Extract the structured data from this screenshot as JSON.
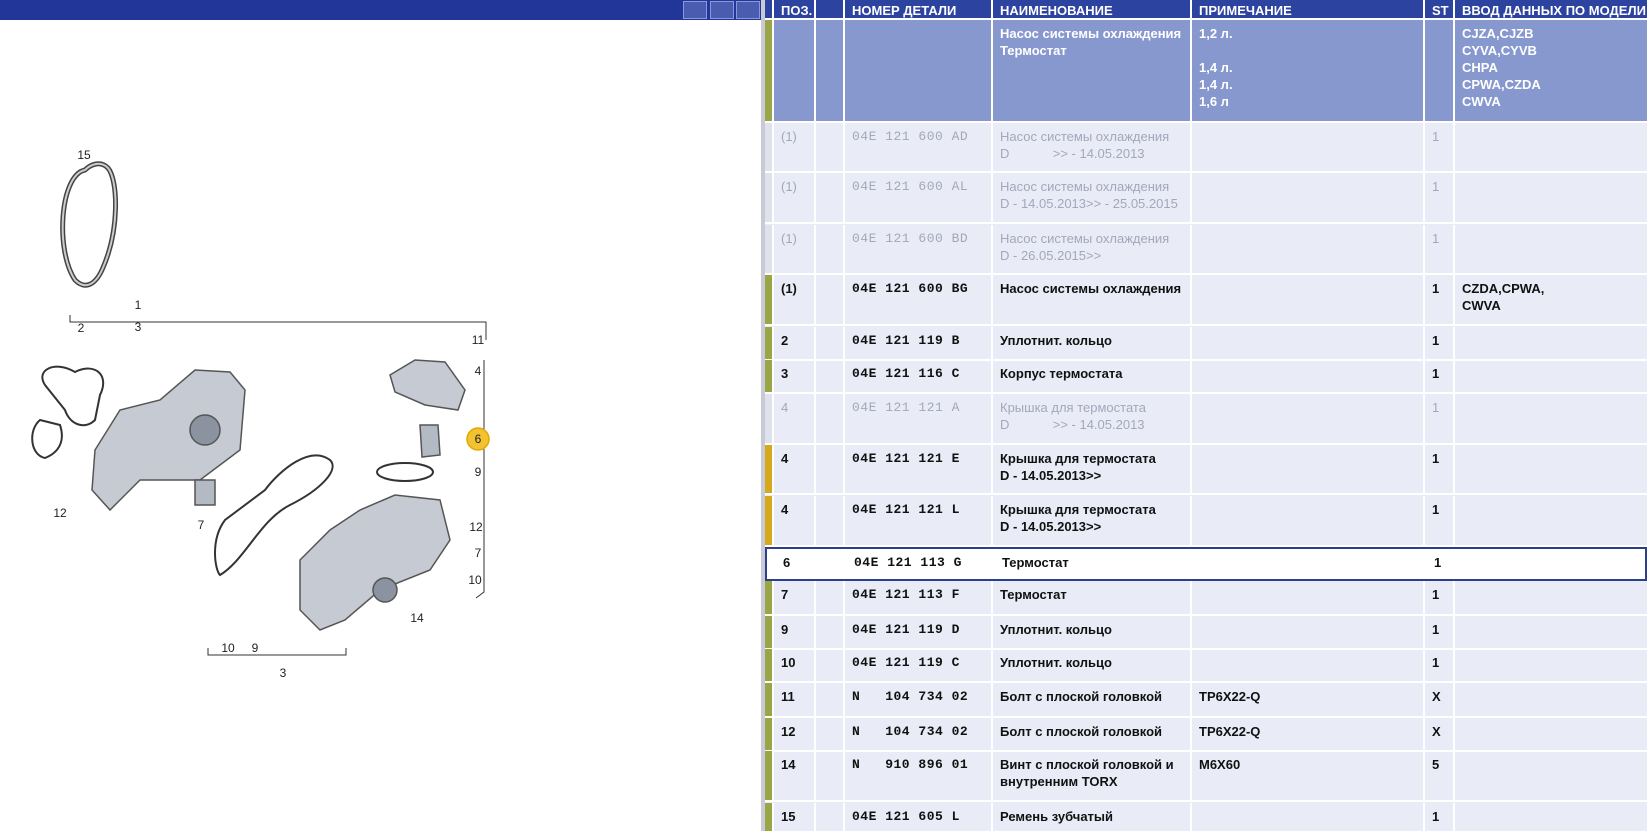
{
  "diagram": {
    "callouts": [
      "15",
      "1",
      "3",
      "2",
      "11",
      "4",
      "6",
      "9",
      "12",
      "7",
      "12",
      "7",
      "10",
      "14",
      "10",
      "9",
      "3"
    ]
  },
  "table": {
    "headers": [
      "ПОЗ.",
      "НОМЕР ДЕТАЛИ",
      "НАИМЕНОВАНИЕ",
      "ПРИМЕЧАНИЕ",
      "ST",
      "ВВОД ДАННЫХ ПО МОДЕЛИ"
    ],
    "group": {
      "name": [
        "Насос системы охлаждения",
        "Термостат"
      ],
      "note": [
        "1,2 л.",
        "1,4 л.",
        "1,4 л.",
        "1,6 л"
      ],
      "model": [
        "CJZA,CJZB",
        "CYVA,CYVB",
        "CHPA",
        "CPWA,CZDA",
        "CWVA"
      ]
    },
    "rows": [
      {
        "pos": "(1)",
        "part": "04E 121 600 AD",
        "name": [
          "Насос системы охлаждения",
          "D            >> - 14.05.2013"
        ],
        "st": "1"
      },
      {
        "pos": "(1)",
        "part": "04E 121 600 AL",
        "name": [
          "Насос системы охлаждения",
          "D - 14.05.2013>> - 25.05.2015"
        ],
        "st": "1"
      },
      {
        "pos": "(1)",
        "part": "04E 121 600 BD",
        "name": [
          "Насос системы охлаждения",
          "D - 26.05.2015>>"
        ],
        "st": "1"
      },
      {
        "pos": "(1)",
        "part": "04E 121 600 BG",
        "name": [
          "Насос системы охлаждения"
        ],
        "st": "1",
        "model": [
          "CZDA,CPWA,",
          "CWVA"
        ]
      },
      {
        "pos": "2",
        "part": "04E 121 119 B",
        "name": [
          "Уплотнит. кольцо"
        ],
        "st": "1"
      },
      {
        "pos": "3",
        "part": "04E 121 116 C",
        "name": [
          "Корпус термостата"
        ],
        "st": "1"
      },
      {
        "pos": "4",
        "part": "04E 121 121 A",
        "name": [
          "Крышка для термостата",
          "D            >> - 14.05.2013"
        ],
        "st": "1"
      },
      {
        "pos": "4",
        "part": "04E 121 121 E",
        "name": [
          "Крышка для термостата",
          "D - 14.05.2013>>"
        ],
        "st": "1"
      },
      {
        "pos": "4",
        "part": "04E 121 121 L",
        "name": [
          "Крышка для термостата",
          "D - 14.05.2013>>"
        ],
        "st": "1"
      },
      {
        "pos": "6",
        "part": "04E 121 113 G",
        "name": [
          "Термостат"
        ],
        "st": "1"
      },
      {
        "pos": "7",
        "part": "04E 121 113 F",
        "name": [
          "Термостат"
        ],
        "st": "1"
      },
      {
        "pos": "9",
        "part": "04E 121 119 D",
        "name": [
          "Уплотнит. кольцо"
        ],
        "st": "1"
      },
      {
        "pos": "10",
        "part": "04E 121 119 C",
        "name": [
          "Уплотнит. кольцо"
        ],
        "st": "1"
      },
      {
        "pos": "11",
        "part": "N   104 734 02",
        "name": [
          "Болт с плоской головкой"
        ],
        "note": [
          "TP6X22-Q"
        ],
        "st": "X"
      },
      {
        "pos": "12",
        "part": "N   104 734 02",
        "name": [
          "Болт с плоской головкой"
        ],
        "note": [
          "TP6X22-Q"
        ],
        "st": "X"
      },
      {
        "pos": "14",
        "part": "N   910 896 01",
        "name": [
          "Винт с плоской головкой и",
          "внутренним TORX"
        ],
        "note": [
          "M6X60"
        ],
        "st": "5"
      },
      {
        "pos": "15",
        "part": "04E 121 605 L",
        "name": [
          "Ремень зубчатый"
        ],
        "st": "1"
      }
    ]
  }
}
